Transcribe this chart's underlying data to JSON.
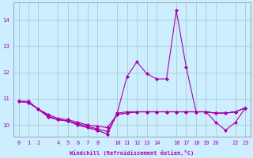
{
  "xlabel": "Windchill (Refroidissement éolien,°C)",
  "bg_color": "#cceeff",
  "grid_color": "#aacccc",
  "line_color": "#aa00aa",
  "ylim": [
    9.55,
    14.65
  ],
  "yticks": [
    10,
    11,
    12,
    13,
    14
  ],
  "xlim": [
    -0.5,
    23.5
  ],
  "series": [
    [
      10.9,
      10.9,
      10.6,
      10.3,
      10.2,
      10.15,
      10.0,
      9.9,
      9.8,
      9.65,
      10.45,
      11.85,
      12.4,
      11.95,
      11.75,
      11.75,
      14.35,
      12.2,
      10.5,
      10.5,
      10.1,
      9.8,
      10.1,
      10.65
    ],
    [
      10.9,
      10.85,
      10.6,
      10.3,
      10.2,
      10.15,
      10.0,
      9.9,
      9.8,
      9.65,
      10.45,
      10.5,
      10.5,
      10.5,
      10.5,
      10.5,
      10.5,
      10.5,
      10.5,
      10.5,
      10.45,
      10.45,
      10.5,
      10.65
    ],
    [
      10.9,
      10.85,
      10.6,
      10.35,
      10.2,
      10.15,
      10.05,
      9.95,
      9.85,
      9.75,
      10.4,
      10.45,
      10.5,
      10.5,
      10.5,
      10.5,
      10.5,
      10.5,
      10.5,
      10.5,
      10.45,
      10.45,
      10.5,
      10.65
    ],
    [
      10.9,
      10.85,
      10.6,
      10.4,
      10.25,
      10.2,
      10.1,
      10.0,
      9.95,
      9.9,
      10.4,
      10.45,
      10.5,
      10.5,
      10.5,
      10.5,
      10.5,
      10.5,
      10.5,
      10.5,
      10.45,
      10.45,
      10.5,
      10.65
    ]
  ],
  "xtick_positions": [
    0,
    1,
    2,
    4,
    5,
    6,
    7,
    8,
    10,
    11,
    12,
    13,
    14,
    16,
    17,
    18,
    19,
    20,
    22,
    23
  ],
  "xtick_labels": [
    "0",
    "1",
    "2",
    "4",
    "5",
    "6",
    "7",
    "8",
    "10",
    "11",
    "12",
    "13",
    "14",
    "16",
    "17",
    "18",
    "19",
    "20",
    "22",
    "23"
  ],
  "marker": "D",
  "marker_size": 2.0,
  "line_width": 0.8,
  "xlabel_fontsize": 5.0,
  "tick_fontsize": 5.0
}
